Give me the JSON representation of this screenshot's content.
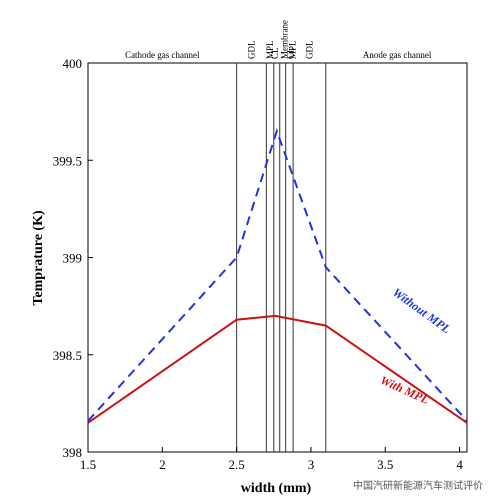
{
  "chart_data": {
    "type": "line",
    "title": "",
    "xlabel": "width (mm)",
    "ylabel": "Temprature (K)",
    "xlim": [
      1.5,
      4.05
    ],
    "ylim": [
      398,
      400
    ],
    "xticks": [
      1.5,
      2,
      2.5,
      3,
      3.5,
      4
    ],
    "xtick_labels": [
      "1.5",
      "2",
      "2.5",
      "3",
      "3.5",
      "4"
    ],
    "yticks": [
      398,
      398.5,
      399,
      399.5,
      400
    ],
    "ytick_labels": [
      "398",
      "398.5",
      "399",
      "399.5",
      "400"
    ],
    "grid": false,
    "series": [
      {
        "name": "Without MPL",
        "style": "dashed",
        "color": "#2233dd",
        "x": [
          1.5,
          2.5,
          2.77,
          3.1,
          4.05
        ],
        "y": [
          398.16,
          399.0,
          399.65,
          398.95,
          398.16
        ]
      },
      {
        "name": "With MPL",
        "style": "solid",
        "color": "#cc1111",
        "x": [
          1.5,
          2.5,
          2.76,
          3.1,
          4.05
        ],
        "y": [
          398.15,
          398.68,
          398.7,
          398.65,
          398.15
        ]
      }
    ],
    "region_boundaries": [
      2.5,
      2.7,
      2.75,
      2.79,
      2.83,
      2.88,
      3.1
    ],
    "region_labels": [
      {
        "text": "Cathode gas channel",
        "x": 2.0,
        "vertical": false
      },
      {
        "text": "GDL",
        "x": 2.6,
        "vertical": true
      },
      {
        "text": "MPL",
        "x": 2.725,
        "vertical": true
      },
      {
        "text": "CL",
        "x": 2.77,
        "vertical": true
      },
      {
        "text": "Membrane",
        "x": 2.81,
        "vertical": true
      },
      {
        "text": "CL",
        "x": 2.855,
        "vertical": true
      },
      {
        "text": "MPL",
        "x": 2.855,
        "vertical": true
      },
      {
        "text": "GDL",
        "x": 2.99,
        "vertical": true
      },
      {
        "text": "Anode gas channel",
        "x": 3.58,
        "vertical": false
      }
    ],
    "annotations": [
      {
        "text": "Without MPL",
        "x": 3.73,
        "y": 398.71,
        "color": "#2233dd",
        "angle": 36
      },
      {
        "text": "With MPL",
        "x": 3.62,
        "y": 398.3,
        "color": "#cc1111",
        "angle": 24
      }
    ]
  },
  "watermark": "中国汽研新能源汽车测试评价"
}
